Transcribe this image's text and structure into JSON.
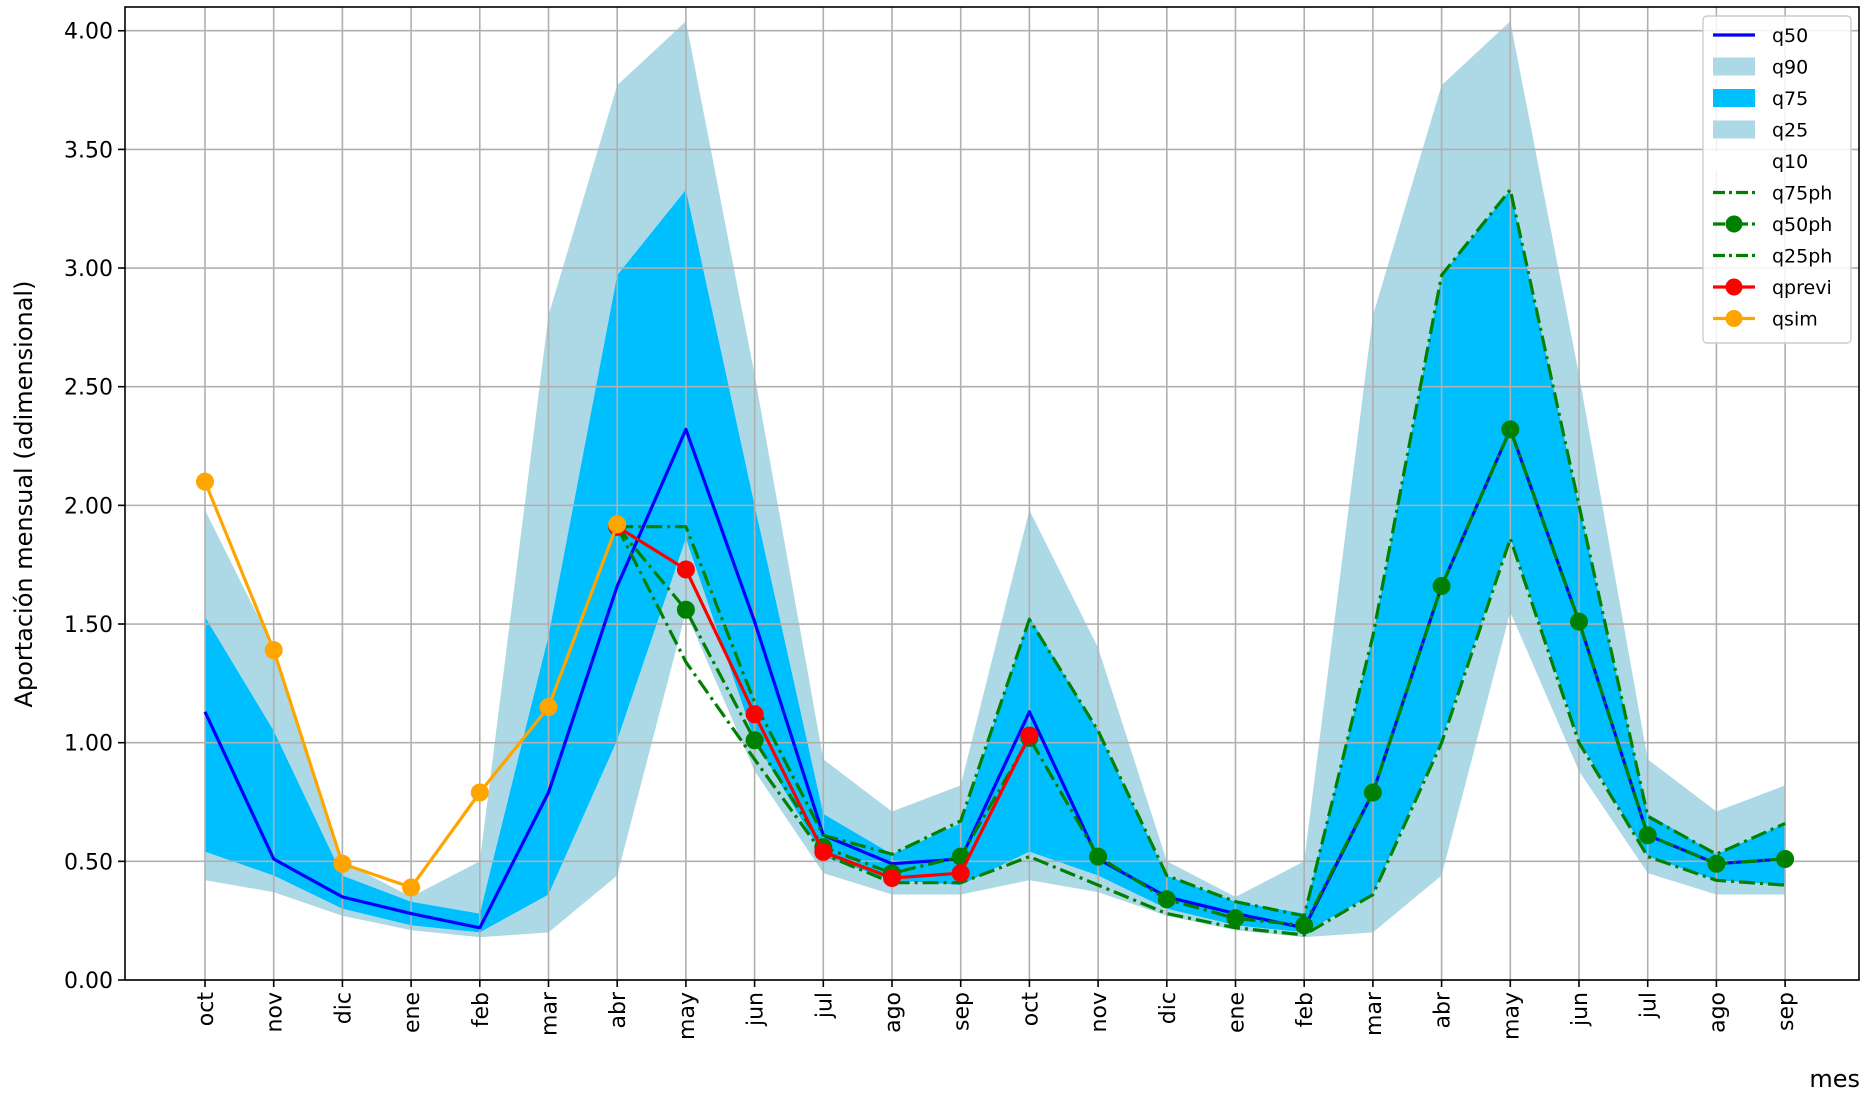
{
  "chart_data": {
    "type": "line",
    "title": "",
    "xlabel": "mes",
    "ylabel": "Aportación mensual (adimensional)",
    "ylim": [
      0,
      4.1
    ],
    "yticks": [
      0,
      0.5,
      1.0,
      1.5,
      2.0,
      2.5,
      3.0,
      3.5,
      4.0
    ],
    "ytick_labels": [
      "0.00",
      "0.50",
      "1.00",
      "1.50",
      "2.00",
      "2.50",
      "3.00",
      "3.50",
      "4.00"
    ],
    "grid": true,
    "legend_position": "top-right",
    "categories": [
      "oct",
      "nov",
      "dic",
      "ene",
      "feb",
      "mar",
      "abr",
      "may",
      "jun",
      "jul",
      "ago",
      "sep",
      "oct",
      "nov",
      "dic",
      "ene",
      "feb",
      "mar",
      "abr",
      "may",
      "jun",
      "jul",
      "ago",
      "sep"
    ],
    "bands": [
      {
        "name": "q90",
        "color": "#add8e6",
        "upper": "q90",
        "lower": "q75"
      },
      {
        "name": "q75",
        "color": "#00bfff",
        "upper": "q75",
        "lower": "q25"
      },
      {
        "name": "q25",
        "color": "#add8e6",
        "upper": "q25",
        "lower": "q10"
      },
      {
        "name": "q10",
        "color": "#ffffff",
        "upper": "q10",
        "lower": "zero"
      }
    ],
    "series": [
      {
        "name": "q90",
        "values": [
          1.98,
          1.4,
          0.5,
          0.35,
          0.5,
          2.8,
          3.77,
          4.04,
          2.55,
          0.93,
          0.71,
          0.82,
          1.98,
          1.4,
          0.5,
          0.35,
          0.5,
          2.8,
          3.77,
          4.04,
          2.55,
          0.93,
          0.71,
          0.82
        ]
      },
      {
        "name": "q75",
        "values": [
          1.53,
          1.05,
          0.44,
          0.33,
          0.28,
          1.45,
          2.97,
          3.33,
          2.0,
          0.7,
          0.53,
          0.66,
          1.53,
          1.05,
          0.44,
          0.33,
          0.28,
          1.45,
          2.97,
          3.33,
          2.0,
          0.7,
          0.53,
          0.66
        ]
      },
      {
        "name": "q50",
        "color": "#0000ff",
        "values": [
          1.13,
          0.51,
          0.35,
          0.28,
          0.22,
          0.79,
          1.66,
          2.32,
          1.51,
          0.61,
          0.49,
          0.51,
          1.13,
          0.51,
          0.35,
          0.28,
          0.22,
          0.79,
          1.66,
          2.32,
          1.51,
          0.61,
          0.49,
          0.51
        ]
      },
      {
        "name": "q25",
        "values": [
          0.54,
          0.44,
          0.3,
          0.23,
          0.2,
          0.36,
          1.01,
          1.86,
          1.01,
          0.52,
          0.42,
          0.4,
          0.54,
          0.44,
          0.3,
          0.23,
          0.2,
          0.36,
          1.01,
          1.86,
          1.01,
          0.52,
          0.42,
          0.4
        ]
      },
      {
        "name": "q10",
        "values": [
          0.42,
          0.37,
          0.27,
          0.21,
          0.18,
          0.2,
          0.44,
          1.55,
          0.88,
          0.45,
          0.36,
          0.36,
          0.42,
          0.37,
          0.27,
          0.21,
          0.18,
          0.2,
          0.44,
          1.55,
          0.88,
          0.45,
          0.36,
          0.36
        ]
      },
      {
        "name": "q75ph",
        "color": "#008000",
        "style": "dashdot",
        "values": [
          null,
          null,
          null,
          null,
          null,
          null,
          1.91,
          1.91,
          1.17,
          0.61,
          0.53,
          0.67,
          1.52,
          1.05,
          0.44,
          0.33,
          0.27,
          1.45,
          2.97,
          3.33,
          2.0,
          0.69,
          0.53,
          0.66
        ]
      },
      {
        "name": "q50ph",
        "color": "#008000",
        "style": "dashdot-marker",
        "values": [
          null,
          null,
          null,
          null,
          null,
          null,
          1.91,
          1.56,
          1.01,
          0.56,
          0.45,
          0.52,
          1.02,
          0.52,
          0.34,
          0.26,
          0.23,
          0.79,
          1.66,
          2.32,
          1.51,
          0.61,
          0.49,
          0.51
        ]
      },
      {
        "name": "q25ph",
        "color": "#008000",
        "style": "dashdot",
        "values": [
          null,
          null,
          null,
          null,
          null,
          null,
          1.91,
          1.34,
          0.93,
          0.53,
          0.41,
          0.41,
          0.52,
          0.4,
          0.28,
          0.22,
          0.19,
          0.36,
          1.0,
          1.86,
          1.0,
          0.52,
          0.42,
          0.4
        ]
      },
      {
        "name": "qprevi",
        "color": "#ff0000",
        "style": "solid-marker",
        "values": [
          null,
          null,
          null,
          null,
          null,
          null,
          1.91,
          1.73,
          1.12,
          0.54,
          0.43,
          0.45,
          1.03,
          null,
          null,
          null,
          null,
          null,
          null,
          null,
          null,
          null,
          null,
          null
        ]
      },
      {
        "name": "qsim",
        "color": "#ffa500",
        "style": "solid-marker",
        "values": [
          2.1,
          1.39,
          0.49,
          0.39,
          0.79,
          1.15,
          1.92,
          null,
          null,
          null,
          null,
          null,
          null,
          null,
          null,
          null,
          null,
          null,
          null,
          null,
          null,
          null,
          null,
          null
        ]
      }
    ],
    "legend": [
      "q50",
      "q90",
      "q75",
      "q25",
      "q10",
      "q75ph",
      "q50ph",
      "q25ph",
      "qprevi",
      "qsim"
    ]
  }
}
